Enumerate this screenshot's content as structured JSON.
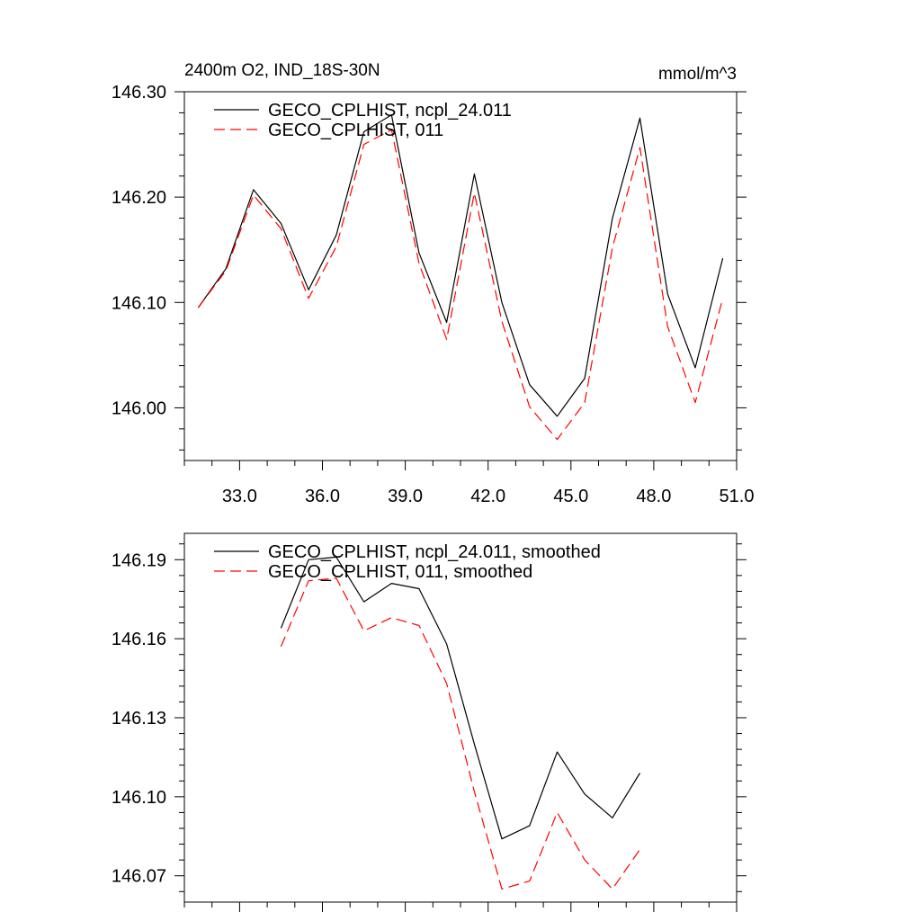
{
  "chart_data": [
    {
      "type": "line",
      "title": "2400m O2, IND_18S-30N",
      "units": "mmol/m^3",
      "xlim": [
        31.0,
        51.0
      ],
      "ylim": [
        145.95,
        146.3
      ],
      "xticks": [
        33.0,
        36.0,
        39.0,
        42.0,
        45.0,
        48.0,
        51.0
      ],
      "xtick_labels": [
        "33.0",
        "36.0",
        "39.0",
        "42.0",
        "45.0",
        "48.0",
        "51.0"
      ],
      "yticks": [
        146.0,
        146.1,
        146.2,
        146.3
      ],
      "ytick_labels": [
        "146.00",
        "146.10",
        "146.20",
        "146.30"
      ],
      "legend_position": "top-left",
      "x": [
        31.5,
        32.5,
        33.5,
        34.5,
        35.5,
        36.5,
        37.5,
        38.5,
        39.5,
        40.5,
        41.5,
        42.5,
        43.5,
        44.5,
        45.5,
        46.5,
        47.5,
        48.5,
        49.5,
        50.5
      ],
      "series": [
        {
          "name": "GECO_CPLHIST, ncpl_24.011",
          "color": "#000000",
          "dash": "solid",
          "values": [
            146.095,
            146.132,
            146.207,
            146.175,
            146.112,
            146.164,
            146.262,
            146.278,
            146.147,
            146.081,
            146.222,
            146.1,
            146.022,
            145.992,
            146.028,
            146.18,
            146.275,
            146.108,
            146.038,
            146.142
          ]
        },
        {
          "name": "GECO_CPLHIST, 011",
          "color": "#ff0000",
          "dash": "dashed",
          "values": [
            146.095,
            146.13,
            146.202,
            146.17,
            146.104,
            146.153,
            146.25,
            146.264,
            146.137,
            146.065,
            146.204,
            146.082,
            146.001,
            145.97,
            146.005,
            146.152,
            146.247,
            146.077,
            146.005,
            146.104
          ]
        }
      ]
    },
    {
      "type": "line",
      "xlim": [
        31.0,
        51.0
      ],
      "ylim": [
        146.06,
        146.2
      ],
      "xticks": [
        33.0,
        36.0,
        39.0,
        42.0,
        45.0,
        48.0,
        51.0
      ],
      "yticks": [
        146.07,
        146.1,
        146.13,
        146.16,
        146.19
      ],
      "ytick_labels": [
        "146.07",
        "146.10",
        "146.13",
        "146.16",
        "146.19"
      ],
      "legend_position": "top-left",
      "x": [
        34.5,
        35.5,
        36.5,
        37.5,
        38.5,
        39.5,
        40.5,
        41.5,
        42.5,
        43.5,
        44.5,
        45.5,
        46.5,
        47.5
      ],
      "series": [
        {
          "name": "GECO_CPLHIST, ncpl_24.011, smoothed",
          "color": "#000000",
          "dash": "solid",
          "values": [
            146.164,
            146.19,
            146.191,
            146.174,
            146.181,
            146.179,
            146.158,
            146.12,
            146.084,
            146.089,
            146.117,
            146.101,
            146.092,
            146.109
          ]
        },
        {
          "name": "GECO_CPLHIST, 011, smoothed",
          "color": "#ff0000",
          "dash": "dashed",
          "values": [
            146.157,
            146.182,
            146.183,
            146.163,
            146.168,
            146.165,
            146.143,
            146.102,
            146.065,
            146.068,
            146.094,
            146.076,
            146.065,
            146.08
          ]
        }
      ]
    }
  ]
}
